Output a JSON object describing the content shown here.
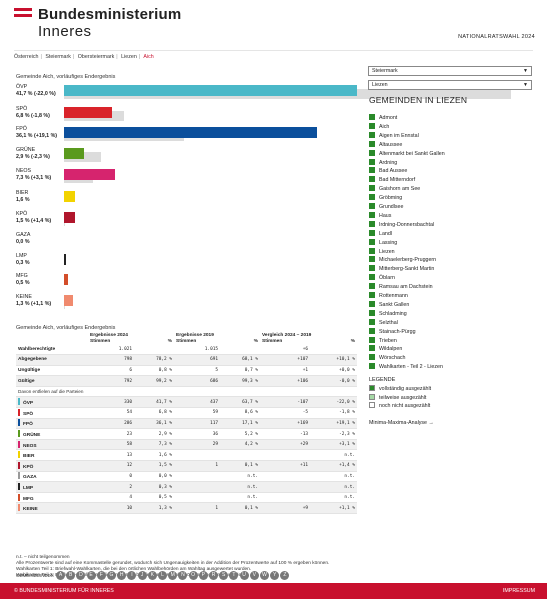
{
  "header": {
    "logo_line1": "Bundesministerium",
    "logo_line2": "Inneres",
    "right_label": "NATIONALRATSWAHL 2024"
  },
  "breadcrumb": [
    "Österreich",
    "Steiermark",
    "Obersteiermark",
    "Liezen",
    "Aich"
  ],
  "chart": {
    "title": "Gemeinde Aich, vorläufiges Endergebnis",
    "parties": [
      {
        "name": "ÖVP",
        "label": "41,7 % (-22,0 %)",
        "cur": 41.7,
        "prev": 63.7,
        "color": "#4ab8c8"
      },
      {
        "name": "SPÖ",
        "label": "6,8 % (-1,8 %)",
        "cur": 6.8,
        "prev": 8.6,
        "color": "#d9232a"
      },
      {
        "name": "FPÖ",
        "label": "36,1 % (+19,1 %)",
        "cur": 36.1,
        "prev": 17.1,
        "color": "#0b4f9c"
      },
      {
        "name": "GRÜNE",
        "label": "2,9 % (-2,3 %)",
        "cur": 2.9,
        "prev": 5.2,
        "color": "#5a9a1e"
      },
      {
        "name": "NEOS",
        "label": "7,3 % (+3,1 %)",
        "cur": 7.3,
        "prev": 4.2,
        "color": "#d6246e"
      },
      {
        "name": "BIER",
        "label": "1,6 %",
        "cur": 1.6,
        "prev": 0,
        "color": "#f2d300"
      },
      {
        "name": "KPÖ",
        "label": "1,5 % (+1,4 %)",
        "cur": 1.5,
        "prev": 0.1,
        "color": "#b0162c"
      },
      {
        "name": "GAZA",
        "label": "0,0 %",
        "cur": 0.0,
        "prev": 0,
        "color": "#9a9a9a"
      },
      {
        "name": "LMP",
        "label": "0,3 %",
        "cur": 0.3,
        "prev": 0,
        "color": "#222222"
      },
      {
        "name": "MFG",
        "label": "0,5 %",
        "cur": 0.5,
        "prev": 0,
        "color": "#d34e2a"
      },
      {
        "name": "KEINE",
        "label": "1,3 % (+1,1 %)",
        "cur": 1.3,
        "prev": 0.1,
        "color": "#f08a6e"
      }
    ]
  },
  "selects": {
    "land": "Steiermark",
    "bezirk": "Liezen"
  },
  "gemeinden": {
    "title": "GEMEINDEN IN LIEZEN",
    "items": [
      "Admont",
      "Aich",
      "Aigen im Ennstal",
      "Altaussee",
      "Altenmarkt bei Sankt Gallen",
      "Ardning",
      "Bad Aussee",
      "Bad Mitterndorf",
      "Gaishorn am See",
      "Gröbming",
      "Grundlsee",
      "Haus",
      "Irdning-Donnersbachtal",
      "Landl",
      "Lassing",
      "Liezen",
      "Michaelerberg-Pruggern",
      "Mitterberg-Sankt Martin",
      "Öblarn",
      "Ramsau am Dachstein",
      "Rottenmann",
      "Sankt Gallen",
      "Schladming",
      "Selzthal",
      "Stainach-Pürgg",
      "Trieben",
      "Wildalpen",
      "Wörschach",
      "Wahlkarten - Teil 2 - Liezen"
    ]
  },
  "legend": {
    "title": "LEGENDE",
    "items": [
      {
        "label": "vollständig ausgezählt",
        "color": "#2a8a2a"
      },
      {
        "label": "teilweise ausgezählt",
        "color": "#a6d9a6"
      },
      {
        "label": "noch nicht ausgezählt",
        "color": "#ffffff"
      }
    ],
    "minmax": "Minima-Maxima-Analyse →"
  },
  "table": {
    "title": "Gemeinde Aich, vorläufiges Endergebnis",
    "h_erg2024": "Ergebnisse 2024",
    "h_erg2019": "Ergebnisse 2019",
    "h_vgl": "Vergleich 2024 – 2019",
    "h_stimmen": "Stimmen",
    "h_pct": "%",
    "rows": [
      {
        "label": "Wahlberechtigte",
        "a": "1.021",
        "b": "",
        "c": "1.015",
        "d": "",
        "e": "+6",
        "f": "",
        "bold": true
      },
      {
        "label": "Abgegebene",
        "a": "798",
        "b": "78,2 %",
        "c": "691",
        "d": "68,1 %",
        "e": "+107",
        "f": "+10,1 %",
        "bold": true
      },
      {
        "label": "Ungültige",
        "a": "6",
        "b": "0,8 %",
        "c": "5",
        "d": "0,7 %",
        "e": "+1",
        "f": "+0,0 %",
        "bold": true
      },
      {
        "label": "Gültige",
        "a": "792",
        "b": "99,2 %",
        "c": "686",
        "d": "99,3 %",
        "e": "+106",
        "f": "-0,0 %",
        "bold": true
      }
    ],
    "sub_label": "Davon entfielen auf die Parteien",
    "party_rows": [
      {
        "label": "ÖVP",
        "a": "330",
        "b": "41,7 %",
        "c": "437",
        "d": "63,7 %",
        "e": "-107",
        "f": "-22,0 %",
        "color": "#4ab8c8"
      },
      {
        "label": "SPÖ",
        "a": "54",
        "b": "6,8 %",
        "c": "59",
        "d": "8,6 %",
        "e": "-5",
        "f": "-1,8 %",
        "color": "#d9232a"
      },
      {
        "label": "FPÖ",
        "a": "286",
        "b": "36,1 %",
        "c": "117",
        "d": "17,1 %",
        "e": "+169",
        "f": "+19,1 %",
        "color": "#0b4f9c"
      },
      {
        "label": "GRÜNE",
        "a": "23",
        "b": "2,9 %",
        "c": "36",
        "d": "5,2 %",
        "e": "-13",
        "f": "-2,3 %",
        "color": "#5a9a1e"
      },
      {
        "label": "NEOS",
        "a": "58",
        "b": "7,3 %",
        "c": "29",
        "d": "4,2 %",
        "e": "+29",
        "f": "+3,1 %",
        "color": "#d6246e"
      },
      {
        "label": "BIER",
        "a": "13",
        "b": "1,6 %",
        "c": "",
        "d": "",
        "e": "",
        "f": "n.t.",
        "color": "#f2d300"
      },
      {
        "label": "KPÖ",
        "a": "12",
        "b": "1,5 %",
        "c": "1",
        "d": "0,1 %",
        "e": "+11",
        "f": "+1,4 %",
        "color": "#b0162c"
      },
      {
        "label": "GAZA",
        "a": "0",
        "b": "0,0 %",
        "c": "",
        "d": "n.t.",
        "e": "",
        "f": "n.t.",
        "color": "#9a9a9a"
      },
      {
        "label": "LMP",
        "a": "2",
        "b": "0,3 %",
        "c": "",
        "d": "n.t.",
        "e": "",
        "f": "n.t.",
        "color": "#222222"
      },
      {
        "label": "MFG",
        "a": "4",
        "b": "0,5 %",
        "c": "",
        "d": "n.t.",
        "e": "",
        "f": "n.t.",
        "color": "#d34e2a"
      },
      {
        "label": "KEINE",
        "a": "10",
        "b": "1,3 %",
        "c": "1",
        "d": "0,1 %",
        "e": "+9",
        "f": "+1,1 %",
        "color": "#f08a6e"
      }
    ]
  },
  "notes": [
    "n.t. – nicht teilgenommen",
    "Alle Prozentwerte sind auf eine Kommastelle gerundet, wodurch sich Ungenauigkeiten in der Addition der Prozentwerte auf 100 % ergeben können.",
    "Wahlkarten Teil 1: Briefwahl-Wahlkarten, die bei den örtlichen Wahlbehörden am Wahltag ausgewertet wurden.",
    "Wahlkarten Teil 2: Briefwahl-Wahlkarten, die am Montag bei den Bezirkswahlbehörden ausgewertet wurden."
  ],
  "index": {
    "label": "GEMEINDEINDEX",
    "letters": [
      "A",
      "B",
      "D",
      "E",
      "F",
      "G",
      "H",
      "I",
      "J",
      "K",
      "L",
      "M",
      "N",
      "O",
      "P",
      "R",
      "S",
      "T",
      "U",
      "V",
      "W",
      "Y",
      "Z"
    ]
  },
  "footer": {
    "left": "© BUNDESMINISTERIUM FÜR INNERES",
    "right": "IMPRESSUM"
  }
}
